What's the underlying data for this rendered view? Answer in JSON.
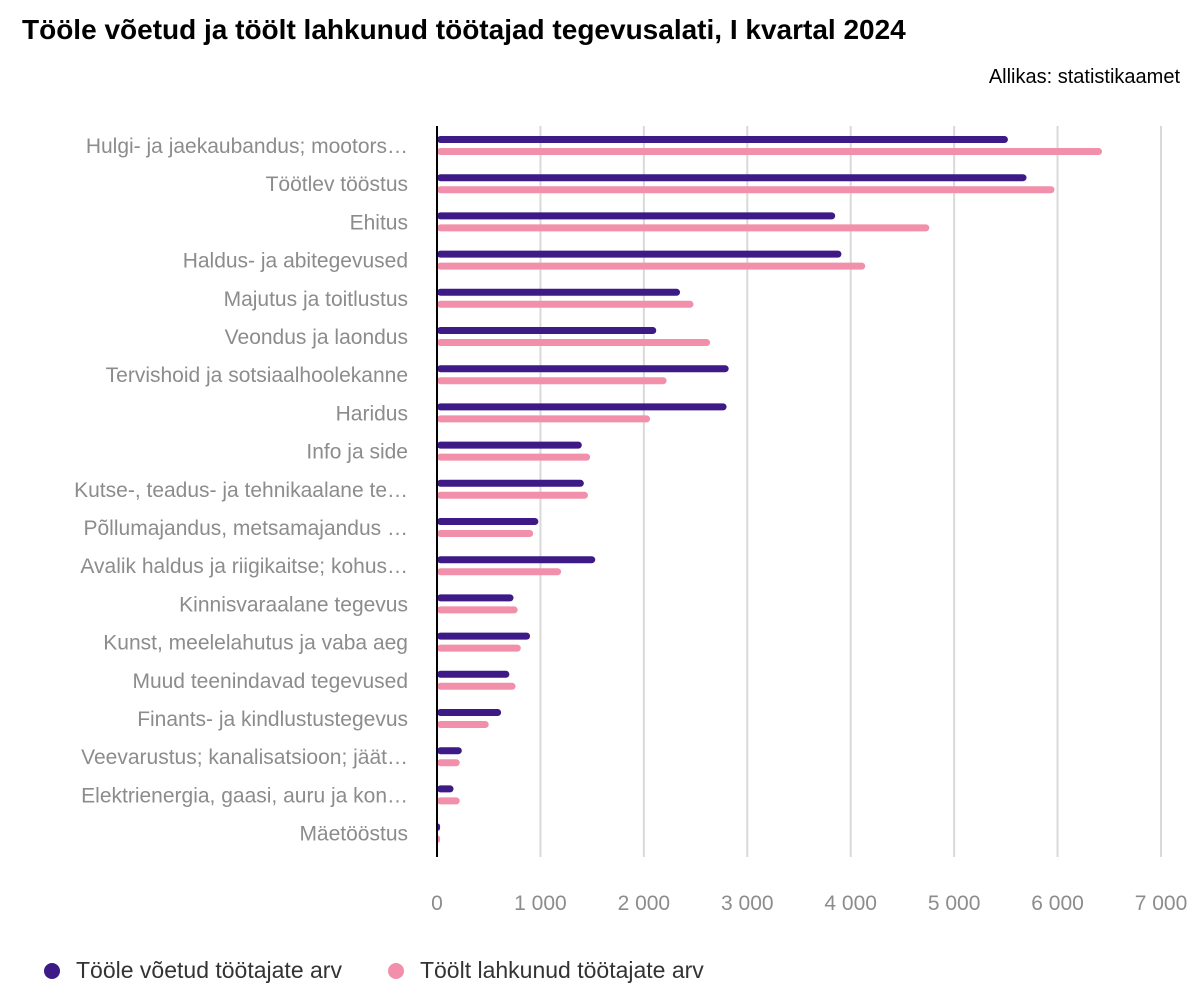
{
  "title": "Tööle võetud ja töölt lahkunud töötajad tegevusalati, I kvartal 2024",
  "source": "Allikas: statistikaamet",
  "colors": {
    "hired": "#3d1a86",
    "left": "#f28fab",
    "grid": "#d9d9d9",
    "axis": "#000000",
    "label": "#8c8c8c"
  },
  "chart_data": {
    "type": "bar",
    "orientation": "horizontal",
    "title": "Tööle võetud ja töölt lahkunud töötajad tegevusalati, I kvartal 2024",
    "xlim": [
      0,
      7000
    ],
    "grid": true,
    "legend_position": "bottom-left",
    "x_ticks": [
      "0",
      "1 000",
      "2 000",
      "3 000",
      "4 000",
      "5 000",
      "6 000",
      "7 000"
    ],
    "categories": [
      "Hulgi- ja jaekaubandus; mootors…",
      "Töötlev tööstus",
      "Ehitus",
      "Haldus- ja abitegevused",
      "Majutus ja toitlustus",
      "Veondus ja laondus",
      "Tervishoid ja sotsiaalhoolekanne",
      "Haridus",
      "Info ja side",
      "Kutse-, teadus- ja tehnikaalane te…",
      "Põllumajandus, metsamajandus …",
      "Avalik haldus ja riigikaitse; kohus…",
      "Kinnisvaraalane tegevus",
      "Kunst, meelelahutus ja vaba aeg",
      "Muud teenindavad tegevused",
      "Finants- ja kindlustustegevus",
      "Veevarustus; kanalisatsioon; jäät…",
      "Elektrienergia, gaasi, auru ja kon…",
      "Mäetööstus"
    ],
    "series": [
      {
        "name": "Tööle võetud töötajate arv",
        "color": "#3d1a86",
        "values": [
          5520,
          5700,
          3850,
          3910,
          2350,
          2120,
          2820,
          2800,
          1400,
          1420,
          980,
          1530,
          740,
          900,
          700,
          620,
          240,
          160,
          30
        ]
      },
      {
        "name": "Töölt lahkunud töötajate arv",
        "color": "#f28fab",
        "values": [
          6430,
          5970,
          4760,
          4140,
          2480,
          2640,
          2220,
          2060,
          1480,
          1460,
          930,
          1200,
          780,
          810,
          760,
          500,
          220,
          220,
          30
        ]
      }
    ]
  }
}
